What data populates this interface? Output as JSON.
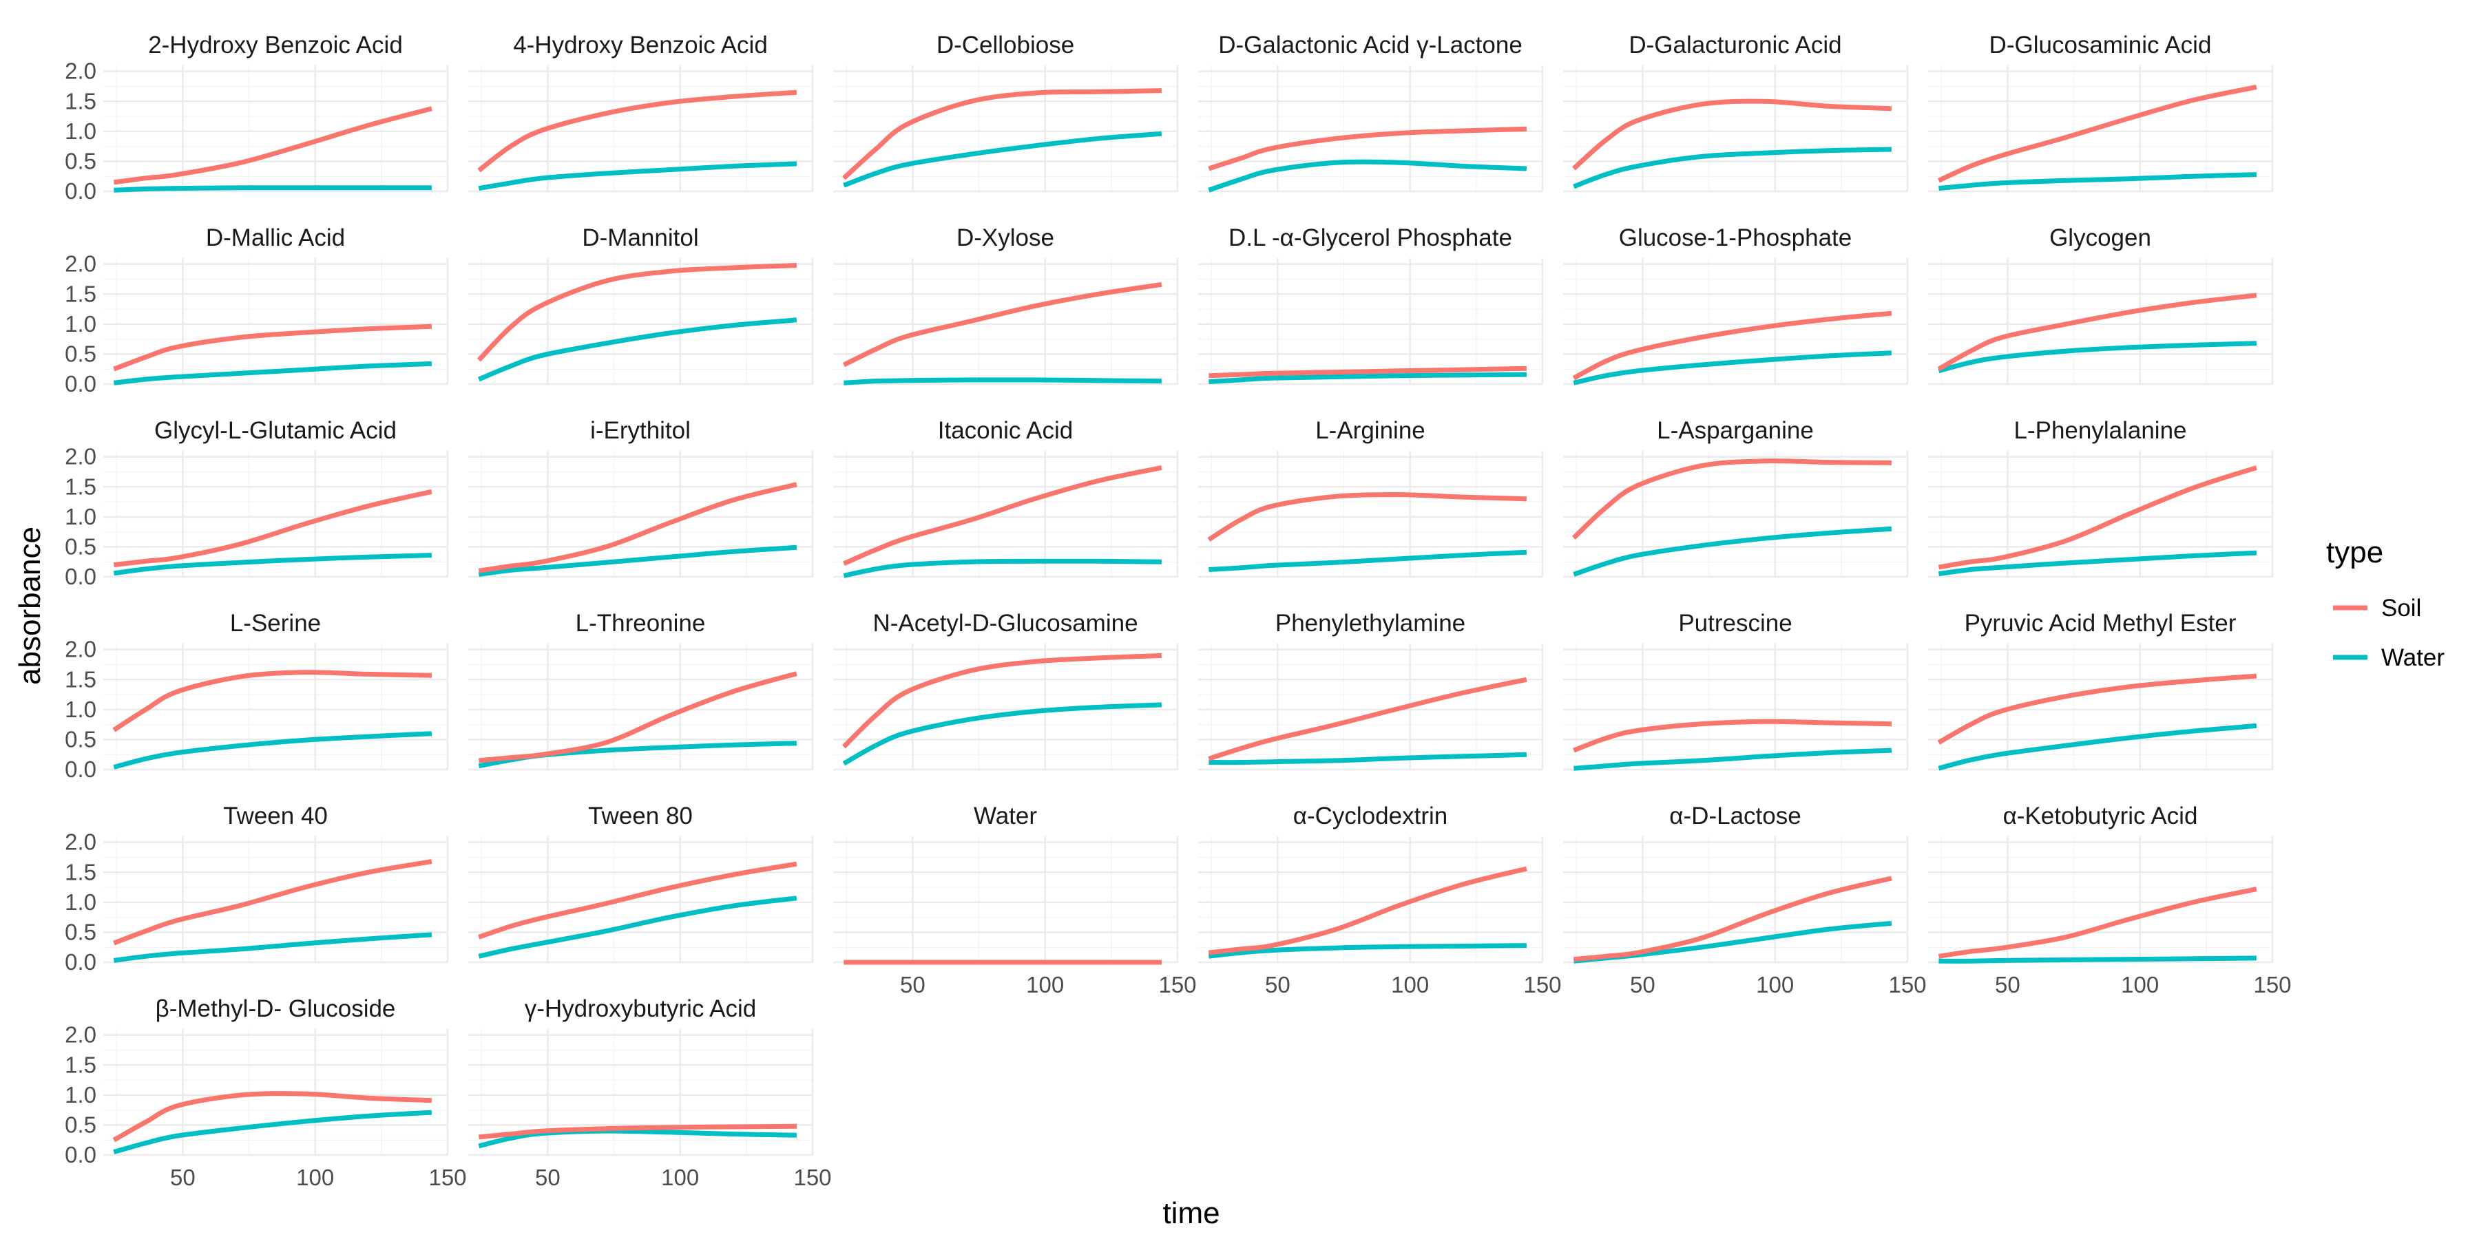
{
  "chart_data": {
    "type": "line",
    "layout": "facet_wrap",
    "ncol": 6,
    "xlabel": "time",
    "ylabel": "absorbance",
    "xlim": [
      20,
      150
    ],
    "ylim": [
      0,
      2.1
    ],
    "xticks": [
      50,
      100,
      150
    ],
    "yticks": [
      0.0,
      0.5,
      1.0,
      1.5,
      2.0
    ],
    "x": [
      24,
      36,
      48,
      72,
      96,
      120,
      144
    ],
    "legend": {
      "title": "type",
      "position": "right"
    },
    "series_styles": [
      {
        "name": "Soil",
        "color": "#F8766D"
      },
      {
        "name": "Water",
        "color": "#00BFC4"
      }
    ],
    "panels": [
      {
        "title": "2-Hydroxy Benzoic Acid",
        "Soil": [
          0.15,
          0.22,
          0.28,
          0.48,
          0.78,
          1.1,
          1.38
        ],
        "Water": [
          0.02,
          0.04,
          0.05,
          0.06,
          0.06,
          0.06,
          0.06
        ]
      },
      {
        "title": "4-Hydroxy Benzoic Acid",
        "Soil": [
          0.35,
          0.75,
          1.02,
          1.3,
          1.48,
          1.58,
          1.65
        ],
        "Water": [
          0.05,
          0.14,
          0.22,
          0.3,
          0.36,
          0.42,
          0.46
        ]
      },
      {
        "title": "D-Cellobiose",
        "Soil": [
          0.22,
          0.7,
          1.12,
          1.5,
          1.64,
          1.66,
          1.68
        ],
        "Water": [
          0.1,
          0.3,
          0.45,
          0.62,
          0.76,
          0.88,
          0.96
        ]
      },
      {
        "title": "D-Galactonic Acid γ-Lactone",
        "Soil": [
          0.38,
          0.55,
          0.72,
          0.88,
          0.97,
          1.01,
          1.04
        ],
        "Water": [
          0.02,
          0.2,
          0.35,
          0.48,
          0.48,
          0.42,
          0.38
        ]
      },
      {
        "title": "D-Galacturonic Acid",
        "Soil": [
          0.38,
          0.85,
          1.18,
          1.45,
          1.5,
          1.42,
          1.38
        ],
        "Water": [
          0.08,
          0.28,
          0.42,
          0.58,
          0.64,
          0.68,
          0.7
        ]
      },
      {
        "title": "D-Glucosaminic Acid",
        "Soil": [
          0.18,
          0.42,
          0.6,
          0.9,
          1.22,
          1.52,
          1.74
        ],
        "Water": [
          0.05,
          0.1,
          0.14,
          0.18,
          0.21,
          0.25,
          0.28
        ]
      },
      {
        "title": "D-Mallic Acid",
        "Soil": [
          0.25,
          0.45,
          0.62,
          0.78,
          0.86,
          0.92,
          0.96
        ],
        "Water": [
          0.02,
          0.08,
          0.12,
          0.18,
          0.24,
          0.3,
          0.34
        ]
      },
      {
        "title": "D-Mannitol",
        "Soil": [
          0.4,
          0.95,
          1.32,
          1.72,
          1.88,
          1.94,
          1.98
        ],
        "Water": [
          0.08,
          0.3,
          0.48,
          0.68,
          0.85,
          0.98,
          1.07
        ]
      },
      {
        "title": "D-Xylose",
        "Soil": [
          0.32,
          0.58,
          0.8,
          1.05,
          1.3,
          1.5,
          1.66
        ],
        "Water": [
          0.02,
          0.05,
          0.06,
          0.07,
          0.07,
          0.06,
          0.05
        ]
      },
      {
        "title": "D.L -α-Glycerol Phosphate",
        "Soil": [
          0.14,
          0.16,
          0.18,
          0.2,
          0.22,
          0.24,
          0.26
        ],
        "Water": [
          0.04,
          0.07,
          0.1,
          0.12,
          0.14,
          0.15,
          0.16
        ]
      },
      {
        "title": "Glucose-1-Phosphate",
        "Soil": [
          0.1,
          0.38,
          0.56,
          0.78,
          0.95,
          1.08,
          1.18
        ],
        "Water": [
          0.02,
          0.14,
          0.22,
          0.32,
          0.4,
          0.47,
          0.52
        ]
      },
      {
        "title": "Glycogen",
        "Soil": [
          0.25,
          0.55,
          0.78,
          1.0,
          1.2,
          1.36,
          1.48
        ],
        "Water": [
          0.22,
          0.36,
          0.45,
          0.55,
          0.61,
          0.65,
          0.68
        ]
      },
      {
        "title": "Glycyl-L-Glutamic Acid",
        "Soil": [
          0.2,
          0.26,
          0.32,
          0.55,
          0.88,
          1.18,
          1.42
        ],
        "Water": [
          0.06,
          0.13,
          0.18,
          0.24,
          0.29,
          0.33,
          0.36
        ]
      },
      {
        "title": "i-Erythitol",
        "Soil": [
          0.1,
          0.18,
          0.25,
          0.5,
          0.9,
          1.28,
          1.54
        ],
        "Water": [
          0.04,
          0.11,
          0.15,
          0.24,
          0.33,
          0.42,
          0.49
        ]
      },
      {
        "title": "Itaconic Acid",
        "Soil": [
          0.22,
          0.45,
          0.65,
          0.95,
          1.3,
          1.6,
          1.82
        ],
        "Water": [
          0.02,
          0.13,
          0.2,
          0.25,
          0.26,
          0.26,
          0.25
        ]
      },
      {
        "title": "L-Arginine",
        "Soil": [
          0.62,
          0.95,
          1.18,
          1.34,
          1.37,
          1.33,
          1.3
        ],
        "Water": [
          0.12,
          0.15,
          0.19,
          0.24,
          0.3,
          0.36,
          0.41
        ]
      },
      {
        "title": "L-Asparganine",
        "Soil": [
          0.65,
          1.15,
          1.52,
          1.85,
          1.93,
          1.91,
          1.9
        ],
        "Water": [
          0.04,
          0.22,
          0.36,
          0.52,
          0.64,
          0.73,
          0.8
        ]
      },
      {
        "title": "L-Phenylalanine",
        "Soil": [
          0.16,
          0.25,
          0.32,
          0.6,
          1.05,
          1.48,
          1.82
        ],
        "Water": [
          0.05,
          0.12,
          0.16,
          0.23,
          0.29,
          0.35,
          0.4
        ]
      },
      {
        "title": "L-Serine",
        "Soil": [
          0.66,
          1.0,
          1.3,
          1.55,
          1.62,
          1.59,
          1.57
        ],
        "Water": [
          0.04,
          0.18,
          0.28,
          0.4,
          0.49,
          0.55,
          0.6
        ]
      },
      {
        "title": "L-Threonine",
        "Soil": [
          0.15,
          0.2,
          0.25,
          0.45,
          0.9,
          1.3,
          1.6
        ],
        "Water": [
          0.06,
          0.16,
          0.24,
          0.32,
          0.37,
          0.41,
          0.44
        ]
      },
      {
        "title": "N-Acetyl-D-Glucosamine",
        "Soil": [
          0.38,
          0.9,
          1.3,
          1.65,
          1.8,
          1.86,
          1.9
        ],
        "Water": [
          0.1,
          0.4,
          0.62,
          0.84,
          0.97,
          1.04,
          1.08
        ]
      },
      {
        "title": "Phenylethylamine",
        "Soil": [
          0.18,
          0.35,
          0.5,
          0.75,
          1.02,
          1.28,
          1.5
        ],
        "Water": [
          0.12,
          0.12,
          0.13,
          0.15,
          0.19,
          0.22,
          0.25
        ]
      },
      {
        "title": "Putrescine",
        "Soil": [
          0.32,
          0.52,
          0.65,
          0.76,
          0.8,
          0.78,
          0.76
        ],
        "Water": [
          0.02,
          0.06,
          0.1,
          0.15,
          0.22,
          0.28,
          0.32
        ]
      },
      {
        "title": "Pyruvic Acid Methyl Ester",
        "Soil": [
          0.45,
          0.75,
          0.98,
          1.22,
          1.38,
          1.48,
          1.56
        ],
        "Water": [
          0.02,
          0.16,
          0.26,
          0.4,
          0.53,
          0.64,
          0.73
        ]
      },
      {
        "title": "Tween 40",
        "Soil": [
          0.32,
          0.52,
          0.7,
          0.95,
          1.25,
          1.5,
          1.68
        ],
        "Water": [
          0.03,
          0.1,
          0.15,
          0.22,
          0.31,
          0.39,
          0.46
        ]
      },
      {
        "title": "Tween 80",
        "Soil": [
          0.42,
          0.6,
          0.74,
          0.98,
          1.24,
          1.46,
          1.64
        ],
        "Water": [
          0.1,
          0.22,
          0.32,
          0.52,
          0.75,
          0.94,
          1.07
        ]
      },
      {
        "title": "Water",
        "Soil": [
          0.0,
          0.0,
          0.0,
          0.0,
          0.0,
          0.0,
          0.0
        ],
        "Water": [
          0.0,
          0.0,
          0.0,
          0.0,
          0.0,
          0.0,
          0.0
        ]
      },
      {
        "title": "α-Cyclodextrin",
        "Soil": [
          0.16,
          0.22,
          0.28,
          0.55,
          0.95,
          1.3,
          1.56
        ],
        "Water": [
          0.1,
          0.16,
          0.2,
          0.24,
          0.26,
          0.27,
          0.28
        ]
      },
      {
        "title": "α-D-Lactose",
        "Soil": [
          0.05,
          0.1,
          0.16,
          0.4,
          0.8,
          1.15,
          1.4
        ],
        "Water": [
          0.02,
          0.07,
          0.12,
          0.25,
          0.4,
          0.55,
          0.65
        ]
      },
      {
        "title": "α-Ketobutyric Acid",
        "Soil": [
          0.1,
          0.18,
          0.24,
          0.42,
          0.72,
          1.0,
          1.22
        ],
        "Water": [
          0.02,
          0.02,
          0.03,
          0.04,
          0.05,
          0.06,
          0.07
        ]
      },
      {
        "title": "β-Methyl-D- Glucoside",
        "Soil": [
          0.25,
          0.55,
          0.82,
          1.0,
          1.02,
          0.95,
          0.91
        ],
        "Water": [
          0.05,
          0.2,
          0.32,
          0.45,
          0.56,
          0.65,
          0.71
        ]
      },
      {
        "title": "γ-Hydroxybutyric Acid",
        "Soil": [
          0.3,
          0.35,
          0.4,
          0.44,
          0.46,
          0.47,
          0.48
        ],
        "Water": [
          0.15,
          0.28,
          0.36,
          0.4,
          0.38,
          0.35,
          0.33
        ]
      }
    ]
  }
}
